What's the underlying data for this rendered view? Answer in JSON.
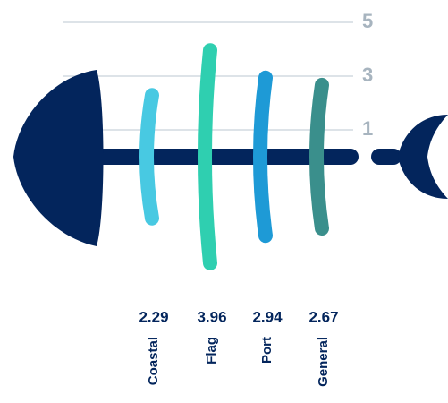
{
  "chart_data": {
    "type": "fishbone",
    "categories": [
      "Coastal",
      "Flag",
      "Port",
      "General"
    ],
    "values": [
      2.29,
      3.96,
      2.94,
      2.67
    ],
    "colors": [
      "#48c9e2",
      "#2fcfb0",
      "#1e9ad6",
      "#3a8f8c"
    ],
    "ylim": [
      0,
      5
    ],
    "yticks": [
      1,
      3,
      5
    ],
    "grid": true
  }
}
